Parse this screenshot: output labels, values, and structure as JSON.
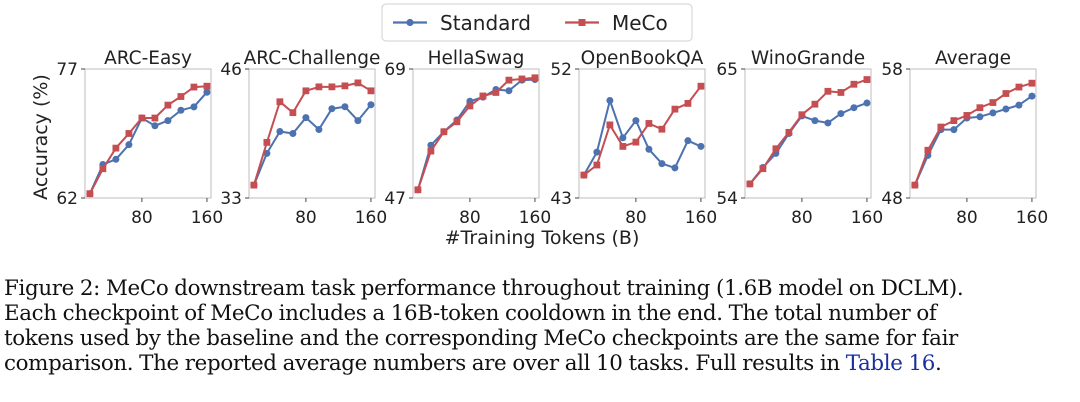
{
  "chart_data": {
    "type": "line",
    "legend_position": "top-center",
    "grid": false,
    "ylabel": "Accuracy (%)",
    "xlabel": "#Training Tokens (B)",
    "legend": [
      {
        "name": "Standard",
        "color": "#4c72b0",
        "marker": "circle"
      },
      {
        "name": "MeCo",
        "color": "#c44e52",
        "marker": "square"
      }
    ],
    "xlim": [
      10,
      165
    ],
    "x": [
      16,
      32,
      48,
      64,
      80,
      96,
      112,
      128,
      144,
      160
    ],
    "xticks": [
      80,
      160
    ],
    "xtick_labels": [
      "80",
      "160"
    ],
    "panels": [
      {
        "title": "ARC-Easy",
        "ylim": [
          62,
          77
        ],
        "yticks": [
          62,
          77
        ],
        "ytick_labels": [
          "62",
          "77"
        ],
        "series": [
          {
            "name": "Standard",
            "values": [
              62.5,
              65.9,
              66.5,
              68.2,
              71.3,
              70.4,
              71.0,
              72.2,
              72.6,
              74.3
            ]
          },
          {
            "name": "MeCo",
            "values": [
              62.5,
              65.4,
              67.8,
              69.5,
              71.3,
              71.3,
              72.8,
              73.8,
              74.9,
              75.0
            ]
          }
        ]
      },
      {
        "title": "ARC-Challenge",
        "ylim": [
          33,
          46
        ],
        "yticks": [
          33,
          46
        ],
        "ytick_labels": [
          "33",
          "46"
        ],
        "series": [
          {
            "name": "Standard",
            "values": [
              34.3,
              37.5,
              39.7,
              39.5,
              41.1,
              39.9,
              42.0,
              42.2,
              40.8,
              42.4
            ]
          },
          {
            "name": "MeCo",
            "values": [
              34.3,
              38.6,
              42.7,
              41.6,
              43.8,
              44.2,
              44.2,
              44.3,
              44.6,
              43.8
            ]
          }
        ]
      },
      {
        "title": "HellaSwag",
        "ylim": [
          47,
          69
        ],
        "yticks": [
          47,
          69
        ],
        "ytick_labels": [
          "47",
          "69"
        ],
        "series": [
          {
            "name": "Standard",
            "values": [
              48.4,
              56.0,
              58.3,
              60.3,
              63.5,
              64.2,
              65.5,
              65.3,
              67.1,
              67.2
            ]
          },
          {
            "name": "MeCo",
            "values": [
              48.4,
              55.0,
              58.3,
              60.0,
              62.7,
              64.4,
              65.0,
              67.1,
              67.3,
              67.5
            ]
          }
        ]
      },
      {
        "title": "OpenBookQA",
        "ylim": [
          43,
          52
        ],
        "yticks": [
          43,
          52
        ],
        "ytick_labels": [
          "43",
          "52"
        ],
        "series": [
          {
            "name": "Standard",
            "values": [
              44.6,
              46.2,
              49.8,
              47.2,
              48.4,
              46.4,
              45.4,
              45.1,
              47.0,
              46.6
            ]
          },
          {
            "name": "MeCo",
            "values": [
              44.6,
              45.3,
              48.1,
              46.6,
              46.9,
              48.2,
              47.8,
              49.2,
              49.6,
              50.8
            ]
          }
        ]
      },
      {
        "title": "WinoGrande",
        "ylim": [
          54,
          65
        ],
        "yticks": [
          54,
          65
        ],
        "ytick_labels": [
          "54",
          "65"
        ],
        "series": [
          {
            "name": "Standard",
            "values": [
              55.2,
              56.6,
              57.8,
              59.5,
              61.0,
              60.6,
              60.4,
              61.2,
              61.7,
              62.1
            ]
          },
          {
            "name": "MeCo",
            "values": [
              55.2,
              56.5,
              58.2,
              59.6,
              61.1,
              62.0,
              63.1,
              63.0,
              63.7,
              64.1
            ]
          }
        ]
      },
      {
        "title": "Average",
        "ylim": [
          48,
          58
        ],
        "yticks": [
          48,
          58
        ],
        "ytick_labels": [
          "48",
          "58"
        ],
        "series": [
          {
            "name": "Standard",
            "values": [
              49.0,
              51.3,
              53.3,
              53.3,
              54.2,
              54.3,
              54.6,
              54.9,
              55.2,
              55.9
            ]
          },
          {
            "name": "MeCo",
            "values": [
              49.0,
              51.7,
              53.5,
              54.0,
              54.4,
              55.0,
              55.4,
              56.1,
              56.6,
              56.9
            ]
          }
        ]
      }
    ]
  },
  "caption": {
    "lines": [
      "Figure 2: MeCo downstream task performance throughout training (1.6B model on DCLM).",
      "Each checkpoint of MeCo includes a 16B-token cooldown in the end. The total number of",
      "tokens used by the baseline and the corresponding MeCo checkpoints are the same for fair",
      "comparison. The reported average numbers are over all 10 tasks. Full results in "
    ],
    "reference": "Table 16",
    "end": "."
  }
}
